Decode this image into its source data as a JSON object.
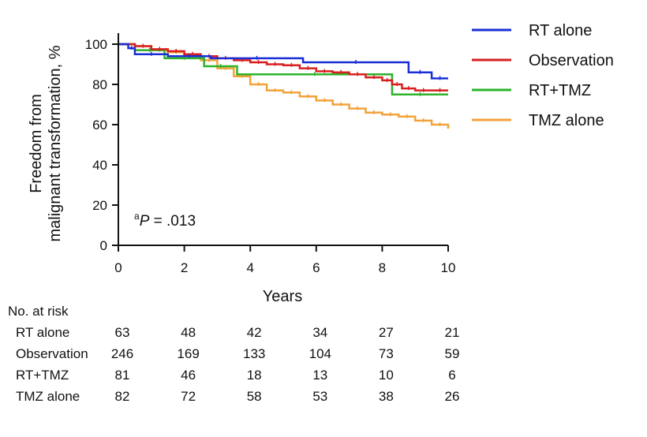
{
  "chart_data": {
    "type": "line",
    "subtype": "kaplan-meier",
    "ylabel_line1": "Freedom from",
    "ylabel_line2": "malignant transformation, %",
    "xlabel": "Years",
    "xlim": [
      0,
      10
    ],
    "ylim": [
      0,
      100
    ],
    "xticks": [
      "0",
      "2",
      "4",
      "6",
      "8",
      "10"
    ],
    "yticks": [
      "0",
      "20",
      "40",
      "60",
      "80",
      "100"
    ],
    "annotation": {
      "superscript": "a",
      "p_italic": "P",
      "rest": " = .013"
    },
    "legend_position": "top-right",
    "series": [
      {
        "name": "RT alone",
        "color": "#1a2ed6",
        "x": [
          0,
          0.3,
          0.5,
          1.5,
          2.8,
          5.6,
          8.8,
          9.5,
          10
        ],
        "y": [
          100,
          98,
          95,
          94,
          93,
          91,
          86,
          83,
          83
        ]
      },
      {
        "name": "Observation",
        "color": "#d81f1f",
        "x": [
          0,
          0.5,
          1,
          1.5,
          2,
          2.5,
          3,
          3.5,
          4,
          4.5,
          5,
          5.5,
          6,
          6.5,
          7,
          7.5,
          8,
          8.3,
          8.6,
          9,
          9.5,
          10
        ],
        "y": [
          100,
          99,
          97.5,
          96.5,
          95,
          94,
          93,
          92,
          91,
          90,
          89.5,
          88,
          86.5,
          86,
          85,
          83.5,
          82,
          80,
          78,
          77,
          77,
          77
        ]
      },
      {
        "name": "RT+TMZ",
        "color": "#2db22a",
        "x": [
          0,
          0.5,
          1.4,
          2.6,
          3.6,
          8.3,
          10
        ],
        "y": [
          100,
          97,
          93,
          89,
          85,
          75,
          75
        ]
      },
      {
        "name": "TMZ alone",
        "color": "#f2a23a",
        "x": [
          0,
          0.5,
          1,
          1.5,
          2,
          2.5,
          3,
          3.5,
          4,
          4.5,
          5,
          5.5,
          6,
          6.5,
          7,
          7.5,
          8,
          8.5,
          9,
          9.5,
          10
        ],
        "y": [
          100,
          99,
          97,
          96,
          94,
          92,
          88,
          84,
          80,
          77,
          76,
          74,
          72,
          70,
          68,
          66,
          65,
          64,
          62,
          60,
          58
        ]
      }
    ],
    "risk_table": {
      "title": "No. at risk",
      "times": [
        "0",
        "2",
        "4",
        "6",
        "8",
        "10"
      ],
      "rows": [
        {
          "name": "RT alone",
          "values": [
            "63",
            "48",
            "42",
            "34",
            "27",
            "21"
          ]
        },
        {
          "name": "Observation",
          "values": [
            "246",
            "169",
            "133",
            "104",
            "73",
            "59"
          ]
        },
        {
          "name": "RT+TMZ",
          "values": [
            "81",
            "46",
            "18",
            "13",
            "10",
            "6"
          ]
        },
        {
          "name": "TMZ alone",
          "values": [
            "82",
            "72",
            "58",
            "53",
            "38",
            "26"
          ]
        }
      ]
    }
  }
}
